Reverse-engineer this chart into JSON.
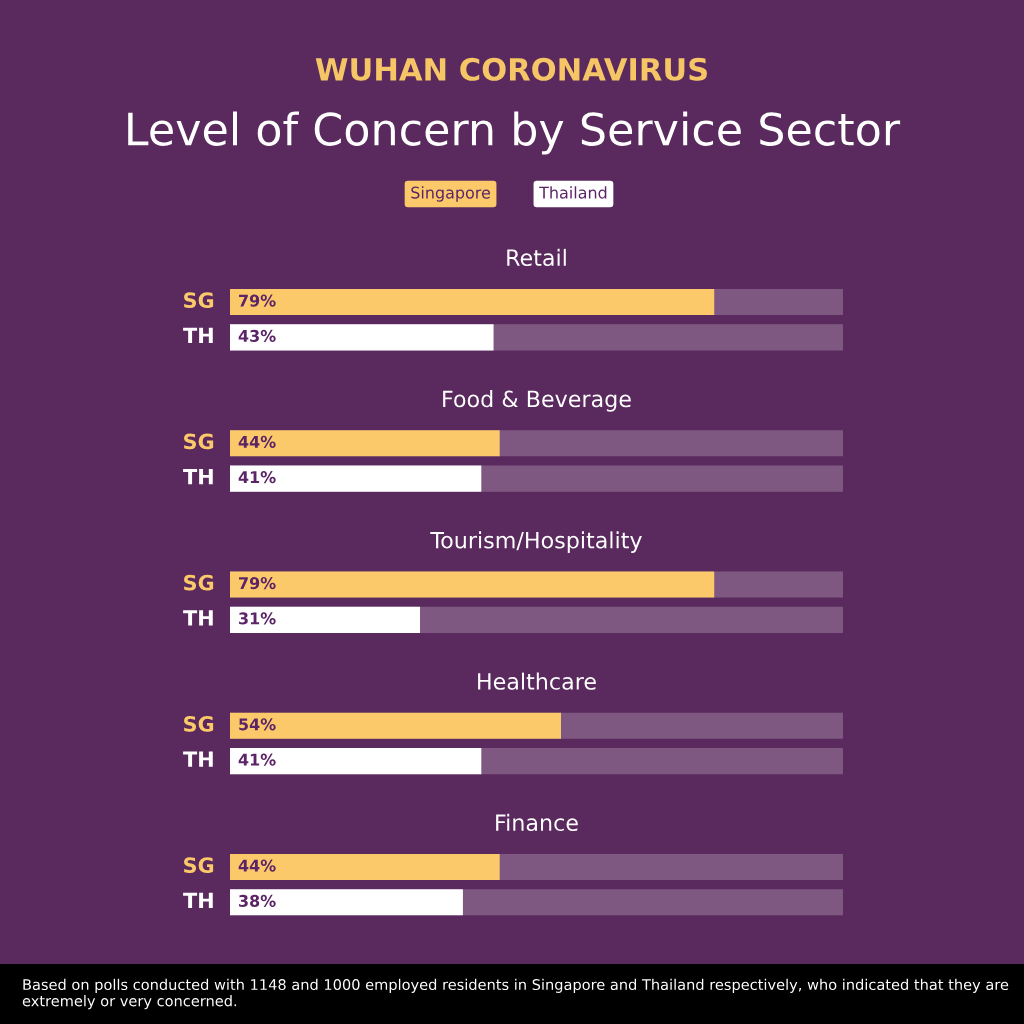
{
  "chart_data": {
    "type": "bar",
    "orientation": "horizontal",
    "title": "WUHAN CORONAVIRUS",
    "subtitle": "Level of Concern by Service Sector",
    "categories": [
      "Retail",
      "Food & Beverage",
      "Tourism/Hospitality",
      "Healthcare",
      "Finance"
    ],
    "series": [
      {
        "name": "Singapore",
        "color": "#fcc96a",
        "values": [
          79,
          44,
          79,
          54,
          44
        ],
        "value_labels": [
          "79%",
          "44%",
          "79%",
          "54%",
          "44%"
        ]
      },
      {
        "name": "Thailand",
        "color": "#ffffff",
        "values": [
          43,
          41,
          31,
          41,
          38
        ],
        "value_labels": [
          "43%",
          "41%",
          "31%",
          "41%",
          "38%"
        ]
      }
    ],
    "xlim": [
      0,
      100
    ],
    "legend": "top",
    "annotations": [
      "SG",
      "TH",
      "Based on polls conducted with 1148 and 1000 employed residents in Singapore and Thailand respectively, who indicated that they are extremely or very concerned."
    ]
  }
}
